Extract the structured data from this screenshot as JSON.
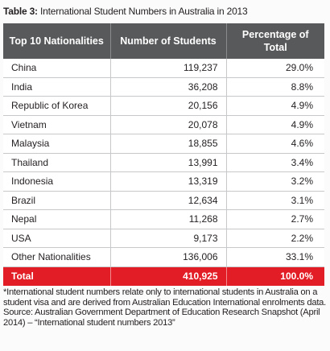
{
  "caption": {
    "label": "Table 3:",
    "title": "International Student Numbers in Australia in 2013"
  },
  "table": {
    "headers": [
      "Top 10 Nationalities",
      "Number of Students",
      "Percentage of Total"
    ],
    "rows": [
      [
        "China",
        "119,237",
        "29.0%"
      ],
      [
        "India",
        "36,208",
        "8.8%"
      ],
      [
        "Republic of Korea",
        "20,156",
        "4.9%"
      ],
      [
        "Vietnam",
        "20,078",
        "4.9%"
      ],
      [
        "Malaysia",
        "18,855",
        "4.6%"
      ],
      [
        "Thailand",
        "13,991",
        "3.4%"
      ],
      [
        "Indonesia",
        "13,319",
        "3.2%"
      ],
      [
        "Brazil",
        "12,634",
        "3.1%"
      ],
      [
        "Nepal",
        "11,268",
        "2.7%"
      ],
      [
        "USA",
        "9,173",
        "2.2%"
      ],
      [
        "Other Nationalities",
        "136,006",
        "33.1%"
      ]
    ],
    "total": [
      "Total",
      "410,925",
      "100.0%"
    ]
  },
  "notes": {
    "footnote": "*International student numbers relate only to international students in Australia on a student visa and are derived from Australian Education International enrolments data.",
    "source": "Source: Australian Government Department of Education Research Snapshot (April 2014) – “International student numbers 2013”"
  },
  "colors": {
    "header_bg": "#58595b",
    "total_bg": "#e31d25",
    "grid": "#c7c8ca"
  }
}
